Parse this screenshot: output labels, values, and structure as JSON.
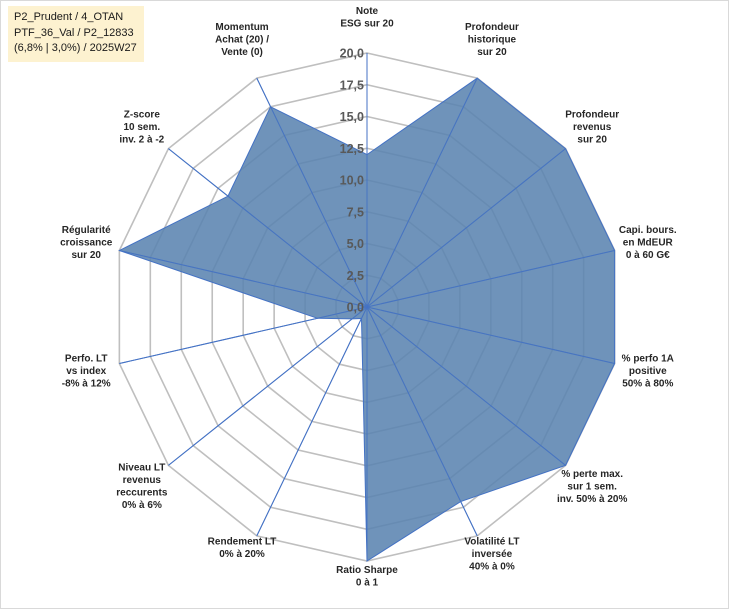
{
  "info_box": {
    "line1": "P2_Prudent / 4_OTAN",
    "line2": "PTF_36_Val / P2_12833",
    "line3": "(6,8% | 3,0%) / 2025W27"
  },
  "colors": {
    "fill": "#5b84b1",
    "stroke": "#4472c4",
    "grid": "#bfbfbf",
    "spoke": "#4472c4",
    "info_bg": "#fdf2d0"
  },
  "chart_data": {
    "type": "radar",
    "rmin": 0,
    "rmax": 20,
    "ticks": [
      0,
      2.5,
      5,
      7.5,
      10,
      12.5,
      15,
      17.5,
      20
    ],
    "tick_labels": [
      "0,0",
      "2,5",
      "5,0",
      "7,5",
      "10,0",
      "12,5",
      "15,0",
      "17,5",
      "20,0"
    ],
    "axes": [
      {
        "label": [
          "Note",
          "ESG sur 20"
        ],
        "value": 12
      },
      {
        "label": [
          "Profondeur",
          "historique",
          "sur 20"
        ],
        "value": 20
      },
      {
        "label": [
          "Profondeur",
          "revenus",
          "sur 20"
        ],
        "value": 20
      },
      {
        "label": [
          "Capi. bours.",
          "en MdEUR",
          "0 à 60 G€"
        ],
        "value": 20
      },
      {
        "label": [
          "% perfo 1A",
          "positive",
          "50% à 80%"
        ],
        "value": 20
      },
      {
        "label": [
          "% perte max.",
          "sur 1 sem.",
          "inv. 50% à 20%"
        ],
        "value": 20
      },
      {
        "label": [
          "Volatilité LT",
          "inversée",
          "40% à 0%"
        ],
        "value": 17
      },
      {
        "label": [
          "Ratio Sharpe",
          "0 à 1"
        ],
        "value": 20
      },
      {
        "label": [
          "Rendement LT",
          "0% à 20%"
        ],
        "value": 1
      },
      {
        "label": [
          "Niveau LT",
          "revenus",
          "reccurents",
          "0% à 6%"
        ],
        "value": 1.5
      },
      {
        "label": [
          "Perfo. LT",
          "vs index",
          "-8% à 12%"
        ],
        "value": 4
      },
      {
        "label": [
          "Régularité",
          "croissance",
          "sur 20"
        ],
        "value": 20
      },
      {
        "label": [
          "Z-score",
          "10 sem.",
          "inv. 2 à -2"
        ],
        "value": 14
      },
      {
        "label": [
          "Momentum",
          "Achat (20) /",
          "Vente (0)"
        ],
        "value": 17.5
      }
    ]
  }
}
